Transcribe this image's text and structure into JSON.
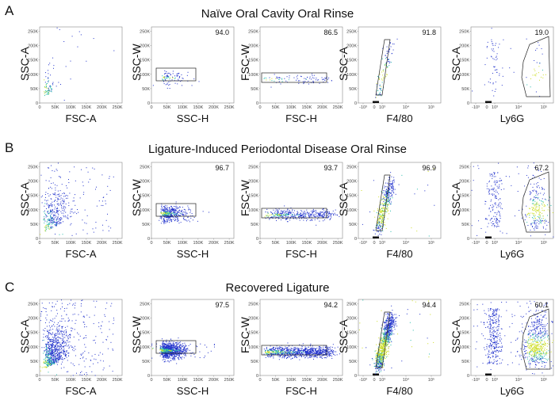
{
  "rows": [
    {
      "letter": "A",
      "title": "Naïve Oral Cavity Oral Rinse",
      "gates": [
        "94.0",
        "86.5",
        "91.8",
        "19.0"
      ]
    },
    {
      "letter": "B",
      "title": "Ligature-Induced Periodontal Disease Oral Rinse",
      "gates": [
        "96.7",
        "93.7",
        "96.9",
        "67.2"
      ]
    },
    {
      "letter": "C",
      "title": "Recovered Ligature",
      "gates": [
        "97.5",
        "94.2",
        "94.4",
        "60.1"
      ]
    }
  ],
  "panels": [
    {
      "ylabel": "SSC-A",
      "xlabel": "FSC-A"
    },
    {
      "ylabel": "SSC-W",
      "xlabel": "SSC-H"
    },
    {
      "ylabel": "FSC-W",
      "xlabel": "FSC-H"
    },
    {
      "ylabel": "SSC-A",
      "xlabel": "F4/80"
    },
    {
      "ylabel": "SSC-A",
      "xlabel": "Ly6G"
    }
  ],
  "ticks": {
    "y_linear": [
      "0",
      "50K",
      "100K",
      "150K",
      "200K",
      "250K"
    ],
    "x_linear": [
      "0",
      "50K",
      "100K",
      "150K",
      "200K",
      "250K"
    ],
    "x_log": [
      "-10³",
      "0",
      "10³",
      "10⁴",
      "10⁵"
    ]
  },
  "chart_data": {
    "type": "scatter",
    "description_levels": [
      "sparse",
      "moderate",
      "dense"
    ],
    "row_density": [
      "sparse",
      "moderate",
      "dense"
    ],
    "axes": {
      "linear_range": [
        0,
        262144
      ]
    }
  },
  "colors": {
    "dot_low": "#2233cc",
    "dot_mid": "#22bbaa",
    "dot_high": "#ccdd22",
    "gate": "#222222"
  }
}
